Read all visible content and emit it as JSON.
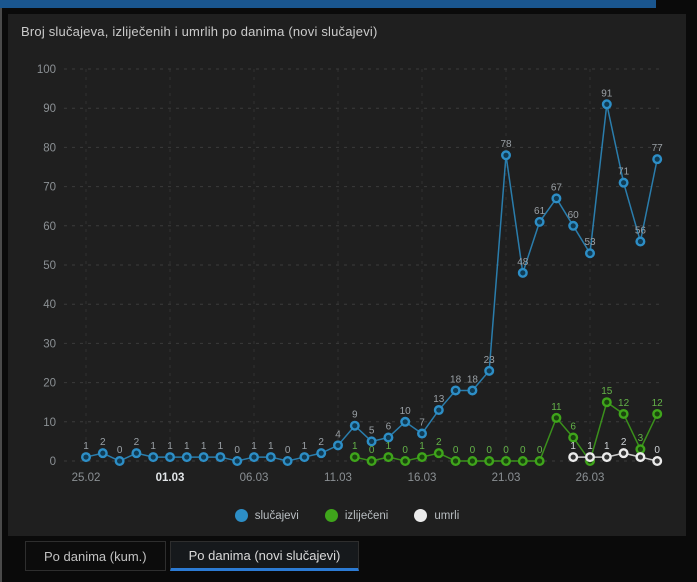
{
  "window": {
    "top_bar_color": "#1a568f"
  },
  "panel": {
    "title": "Broj slučajeva, izliječenih i umrlih po danima (novi slučajevi)"
  },
  "chart_data": {
    "type": "line",
    "title": "Broj slučajeva, izliječenih i umrlih po danima (novi slučajevi)",
    "x_dates": [
      "25.02",
      "26.02",
      "27.02",
      "28.02",
      "29.02",
      "01.03",
      "02.03",
      "03.03",
      "04.03",
      "05.03",
      "06.03",
      "07.03",
      "08.03",
      "09.03",
      "10.03",
      "11.03",
      "12.03",
      "13.03",
      "14.03",
      "15.03",
      "16.03",
      "17.03",
      "18.03",
      "19.03",
      "20.03",
      "21.03",
      "22.03",
      "23.03",
      "24.03",
      "25.03",
      "26.03",
      "27.03",
      "28.03",
      "29.03",
      "30.03"
    ],
    "x_tick_indices": [
      0,
      5,
      10,
      15,
      20,
      25,
      30
    ],
    "x_tick_labels": [
      "25.02",
      "01.03",
      "06.03",
      "11.03",
      "16.03",
      "21.03",
      "26.03"
    ],
    "x_tick_bold_label": "01.03",
    "ylim": [
      0,
      100
    ],
    "yticks": [
      0,
      10,
      20,
      30,
      40,
      50,
      60,
      70,
      80,
      90,
      100
    ],
    "grid": true,
    "legend_position": "bottom",
    "series": [
      {
        "name": "slučajevi",
        "color": "#2d8ec6",
        "center_color": "#103a52",
        "label_color": "#9aa0a5",
        "values": [
          1,
          2,
          0,
          2,
          1,
          1,
          1,
          1,
          1,
          0,
          1,
          1,
          0,
          1,
          2,
          4,
          9,
          5,
          6,
          10,
          7,
          13,
          18,
          18,
          23,
          78,
          48,
          61,
          67,
          60,
          53,
          91,
          71,
          56,
          77
        ]
      },
      {
        "name": "izliječeni",
        "color": "#3fa51b",
        "center_color": "#1a430e",
        "label_color": "#64b249",
        "values": [
          null,
          null,
          null,
          null,
          null,
          null,
          null,
          null,
          null,
          null,
          null,
          null,
          null,
          null,
          null,
          null,
          1,
          0,
          1,
          0,
          1,
          2,
          0,
          0,
          0,
          0,
          0,
          0,
          11,
          6,
          0,
          15,
          12,
          3,
          12
        ]
      },
      {
        "name": "umrli",
        "color": "#ebebeb",
        "center_color": "#333333",
        "label_color": "#cdd2d6",
        "values": [
          null,
          null,
          null,
          null,
          null,
          null,
          null,
          null,
          null,
          null,
          null,
          null,
          null,
          null,
          null,
          null,
          null,
          null,
          null,
          null,
          null,
          null,
          null,
          null,
          null,
          null,
          null,
          null,
          null,
          1,
          1,
          1,
          2,
          1,
          0
        ]
      }
    ],
    "hidden_value_labels": [
      {
        "series": 1,
        "index": 30
      },
      {
        "series": 2,
        "index": 33
      }
    ]
  },
  "tabs": [
    {
      "label": "Po danima (kum.)",
      "active": false
    },
    {
      "label": "Po danima (novi slučajevi)",
      "active": true
    }
  ]
}
